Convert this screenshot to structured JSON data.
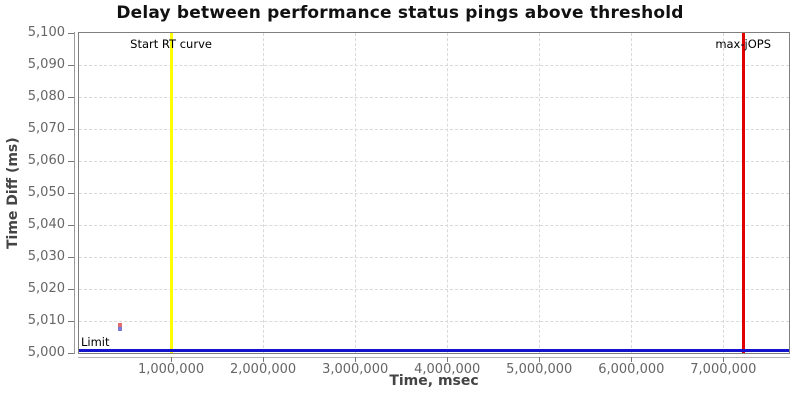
{
  "chart_data": {
    "type": "scatter",
    "title": "Delay between performance status pings above threshold",
    "xlabel": "Time, msec",
    "ylabel": "Time Diff (ms)",
    "xlim": [
      0,
      7713000
    ],
    "ylim": [
      5000,
      5100
    ],
    "grid": "dashed",
    "legend": "none",
    "x_ticks": [
      {
        "value": 1000000,
        "label": "1,000,000"
      },
      {
        "value": 2000000,
        "label": "2,000,000"
      },
      {
        "value": 3000000,
        "label": "3,000,000"
      },
      {
        "value": 4000000,
        "label": "4,000,000"
      },
      {
        "value": 5000000,
        "label": "5,000,000"
      },
      {
        "value": 6000000,
        "label": "6,000,000"
      },
      {
        "value": 7000000,
        "label": "7,000,000"
      }
    ],
    "y_ticks": [
      {
        "value": 5000,
        "label": "5,000"
      },
      {
        "value": 5010,
        "label": "5,010"
      },
      {
        "value": 5020,
        "label": "5,020"
      },
      {
        "value": 5030,
        "label": "5,030"
      },
      {
        "value": 5040,
        "label": "5,040"
      },
      {
        "value": 5050,
        "label": "5,050"
      },
      {
        "value": 5060,
        "label": "5,060"
      },
      {
        "value": 5070,
        "label": "5,070"
      },
      {
        "value": 5080,
        "label": "5,080"
      },
      {
        "value": 5090,
        "label": "5,090"
      },
      {
        "value": 5100,
        "label": "5,100"
      }
    ],
    "markers": [
      {
        "kind": "vline",
        "value": 1000000,
        "label": "Start RT curve",
        "color": "#ffff00"
      },
      {
        "kind": "vline",
        "value": 7215000,
        "label": "max-jOPS",
        "color": "#e00000"
      },
      {
        "kind": "hline",
        "value": 5000,
        "label": "Limit",
        "color": "#1414cc"
      }
    ],
    "points": [
      {
        "x": 450000,
        "y": 5008.6,
        "color": "#e06c6c"
      },
      {
        "x": 450000,
        "y": 5007.4,
        "color": "#7878d8"
      }
    ]
  }
}
